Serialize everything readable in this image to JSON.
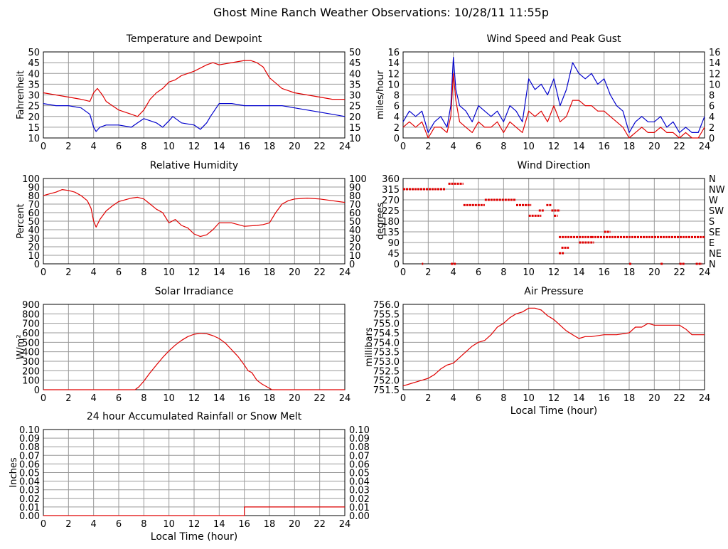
{
  "page_title": "Ghost Mine Ranch Weather Observations: 10/28/11 11:55p",
  "colors": {
    "red": "#e00000",
    "blue": "#0000cc",
    "grid": "#999999",
    "frame": "#000000"
  },
  "chart_data": [
    {
      "id": "temperature",
      "type": "line",
      "title": "Temperature and Dewpoint",
      "ylabel": "Fahrenheit",
      "xlabel": "",
      "xlim": [
        0,
        24
      ],
      "ylim": [
        10,
        50
      ],
      "xticks": [
        0,
        2,
        4,
        6,
        8,
        10,
        12,
        14,
        16,
        18,
        20,
        22,
        24
      ],
      "yticks": [
        10,
        15,
        20,
        25,
        30,
        35,
        40,
        45,
        50
      ],
      "right_axis": true,
      "grid": true,
      "series": [
        {
          "color": "red",
          "x": [
            0,
            1,
            2,
            3,
            3.7,
            4,
            4.3,
            4.7,
            5,
            6,
            7,
            7.5,
            8,
            8.5,
            9,
            9.5,
            10,
            10.5,
            11,
            12,
            13,
            13.5,
            14,
            15,
            16,
            16.5,
            17,
            17.5,
            18,
            19,
            20,
            21,
            22,
            23,
            24
          ],
          "y": [
            31,
            30,
            29,
            28,
            27,
            31,
            33,
            30,
            27,
            23,
            21,
            20,
            23,
            28,
            31,
            33,
            36,
            37,
            39,
            41,
            44,
            45,
            44,
            45,
            46,
            46,
            45,
            43,
            38,
            33,
            31,
            30,
            29,
            28,
            28
          ]
        },
        {
          "color": "blue",
          "x": [
            0,
            1,
            2,
            3,
            3.7,
            4,
            4.2,
            4.5,
            5,
            6,
            7,
            7.5,
            8,
            8.5,
            9,
            9.5,
            10,
            10.3,
            11,
            12,
            12.5,
            13,
            13.3,
            14,
            15,
            16,
            17,
            18,
            19,
            20,
            21,
            22,
            23,
            24
          ],
          "y": [
            26,
            25,
            25,
            24,
            21,
            15,
            13,
            15,
            16,
            16,
            15,
            17,
            19,
            18,
            17,
            15,
            18,
            20,
            17,
            16,
            14,
            17,
            20,
            26,
            26,
            25,
            25,
            25,
            25,
            24,
            23,
            22,
            21,
            20
          ]
        }
      ]
    },
    {
      "id": "wind-speed",
      "type": "line",
      "title": "Wind Speed and Peak Gust",
      "ylabel": "miles/hour",
      "xlabel": "",
      "xlim": [
        0,
        24
      ],
      "ylim": [
        0,
        16
      ],
      "xticks": [
        0,
        2,
        4,
        6,
        8,
        10,
        12,
        14,
        16,
        18,
        20,
        22,
        24
      ],
      "yticks": [
        0,
        2,
        4,
        6,
        8,
        10,
        12,
        14,
        16
      ],
      "right_axis": true,
      "grid": true,
      "series": [
        {
          "color": "blue",
          "x": [
            0,
            0.5,
            1,
            1.5,
            2,
            2.5,
            3,
            3.5,
            3.8,
            4,
            4.2,
            4.5,
            5,
            5.5,
            6,
            6.5,
            7,
            7.5,
            8,
            8.5,
            9,
            9.5,
            10,
            10.5,
            11,
            11.5,
            12,
            12.5,
            13,
            13.5,
            14,
            14.5,
            15,
            15.5,
            16,
            16.5,
            17,
            17.5,
            18,
            18.5,
            19,
            19.5,
            20,
            20.5,
            21,
            21.5,
            22,
            22.5,
            23,
            23.5,
            24
          ],
          "y": [
            3,
            5,
            4,
            5,
            1,
            3,
            4,
            2,
            6,
            15,
            9,
            6,
            5,
            3,
            6,
            5,
            4,
            5,
            3,
            6,
            5,
            3,
            11,
            9,
            10,
            8,
            11,
            6,
            9,
            14,
            12,
            11,
            12,
            10,
            11,
            8,
            6,
            5,
            1,
            3,
            4,
            3,
            3,
            4,
            2,
            3,
            1,
            2,
            1,
            1,
            4
          ]
        },
        {
          "color": "red",
          "x": [
            0,
            0.5,
            1,
            1.5,
            2,
            2.5,
            3,
            3.5,
            3.8,
            4,
            4.2,
            4.5,
            5,
            5.5,
            6,
            6.5,
            7,
            7.5,
            8,
            8.5,
            9,
            9.5,
            10,
            10.5,
            11,
            11.5,
            12,
            12.5,
            13,
            13.5,
            14,
            14.5,
            15,
            15.5,
            16,
            16.5,
            17,
            17.5,
            18,
            18.5,
            19,
            19.5,
            20,
            20.5,
            21,
            21.5,
            22,
            22.5,
            23,
            23.5,
            24
          ],
          "y": [
            2,
            3,
            2,
            3,
            0,
            2,
            2,
            1,
            4,
            12,
            7,
            3,
            2,
            1,
            3,
            2,
            2,
            3,
            1,
            3,
            2,
            1,
            5,
            4,
            5,
            3,
            6,
            3,
            4,
            7,
            7,
            6,
            6,
            5,
            5,
            4,
            3,
            2,
            0,
            1,
            2,
            1,
            1,
            2,
            1,
            1,
            0,
            1,
            0,
            0,
            2
          ]
        }
      ]
    },
    {
      "id": "humidity",
      "type": "line",
      "title": "Relative Humidity",
      "ylabel": "Percent",
      "xlabel": "",
      "xlim": [
        0,
        24
      ],
      "ylim": [
        0,
        100
      ],
      "xticks": [
        0,
        2,
        4,
        6,
        8,
        10,
        12,
        14,
        16,
        18,
        20,
        22,
        24
      ],
      "yticks": [
        0,
        10,
        20,
        30,
        40,
        50,
        60,
        70,
        80,
        90,
        100
      ],
      "right_axis": true,
      "grid": true,
      "series": [
        {
          "color": "red",
          "x": [
            0,
            0.5,
            1,
            1.5,
            2,
            2.5,
            3,
            3.5,
            3.8,
            4,
            4.2,
            4.5,
            5,
            5.5,
            6,
            7,
            7.5,
            8,
            8.5,
            9,
            9.5,
            10,
            10.5,
            11,
            11.5,
            12,
            12.5,
            13,
            13.5,
            14,
            15,
            16,
            17,
            17.5,
            18,
            18.5,
            19,
            19.5,
            20,
            21,
            22,
            23,
            24
          ],
          "y": [
            80,
            82,
            84,
            87,
            86,
            84,
            80,
            74,
            65,
            50,
            43,
            52,
            62,
            68,
            73,
            77,
            78,
            76,
            70,
            64,
            60,
            48,
            52,
            45,
            42,
            35,
            32,
            34,
            40,
            48,
            48,
            44,
            45,
            46,
            48,
            60,
            70,
            74,
            76,
            77,
            76,
            74,
            72
          ]
        }
      ]
    },
    {
      "id": "wind-direction",
      "type": "scatter",
      "title": "Wind Direction",
      "ylabel": "degrees",
      "xlabel": "",
      "xlim": [
        0,
        24
      ],
      "ylim": [
        0,
        360
      ],
      "xticks": [
        0,
        2,
        4,
        6,
        8,
        10,
        12,
        14,
        16,
        18,
        20,
        22,
        24
      ],
      "yticks": [
        0,
        45,
        90,
        135,
        180,
        225,
        270,
        315,
        360
      ],
      "right_tick_labels": [
        "N",
        "NE",
        "E",
        "SE",
        "S",
        "SW",
        "W",
        "NW",
        "N"
      ],
      "grid": true,
      "series": [
        {
          "color": "red",
          "segments": [
            {
              "x": [
                0,
                3.4
              ],
              "y": 315
            },
            {
              "x": [
                3.6,
                4.8
              ],
              "y": 338
            },
            {
              "x": [
                4.8,
                6.5
              ],
              "y": 248
            },
            {
              "x": [
                6.5,
                9.0
              ],
              "y": 270
            },
            {
              "x": [
                9.0,
                10.2
              ],
              "y": 248
            },
            {
              "x": [
                10.0,
                11.0
              ],
              "y": 203
            },
            {
              "x": [
                10.8,
                11.2
              ],
              "y": 225
            },
            {
              "x": [
                11.4,
                11.8
              ],
              "y": 248
            },
            {
              "x": [
                11.8,
                12.5
              ],
              "y": 225
            },
            {
              "x": [
                12.0,
                12.3
              ],
              "y": 203
            },
            {
              "x": [
                12.4,
                12.8
              ],
              "y": 45
            },
            {
              "x": [
                12.6,
                13.2
              ],
              "y": 68
            },
            {
              "x": [
                12.4,
                15.0
              ],
              "y": 113
            },
            {
              "x": [
                14.0,
                15.2
              ],
              "y": 90
            },
            {
              "x": [
                15.0,
                24.0
              ],
              "y": 113
            },
            {
              "x": [
                16.0,
                16.5
              ],
              "y": 135
            },
            {
              "x": [
                1.5,
                1.6
              ],
              "y": 0
            },
            {
              "x": [
                3.8,
                4.2
              ],
              "y": 0
            },
            {
              "x": [
                18.0,
                18.2
              ],
              "y": 0
            },
            {
              "x": [
                20.5,
                20.7
              ],
              "y": 0
            },
            {
              "x": [
                22.0,
                22.4
              ],
              "y": 0
            },
            {
              "x": [
                23.3,
                23.8
              ],
              "y": 0
            }
          ]
        }
      ]
    },
    {
      "id": "solar",
      "type": "line",
      "title": "Solar Irradiance",
      "ylabel": "W/m²",
      "xlabel": "",
      "xlim": [
        0,
        24
      ],
      "ylim": [
        0,
        900
      ],
      "xticks": [
        0,
        2,
        4,
        6,
        8,
        10,
        12,
        14,
        16,
        18,
        20,
        22,
        24
      ],
      "yticks": [
        0,
        100,
        200,
        300,
        400,
        500,
        600,
        700,
        800,
        900
      ],
      "right_axis": false,
      "grid": true,
      "series": [
        {
          "color": "red",
          "x": [
            0,
            7.3,
            7.6,
            8,
            8.5,
            9,
            9.5,
            10,
            10.5,
            11,
            11.5,
            12,
            12.5,
            13,
            13.5,
            14,
            14.5,
            15,
            15.5,
            16,
            16.3,
            16.6,
            17,
            17.4,
            17.8,
            18.2,
            24
          ],
          "y": [
            0,
            0,
            30,
            90,
            180,
            260,
            340,
            410,
            470,
            520,
            560,
            585,
            595,
            590,
            570,
            540,
            490,
            420,
            350,
            260,
            200,
            180,
            100,
            60,
            30,
            0,
            0
          ]
        }
      ]
    },
    {
      "id": "pressure",
      "type": "line",
      "title": "Air Pressure",
      "ylabel": "millibars",
      "xlabel": "Local Time (hour)",
      "xlim": [
        0,
        24
      ],
      "ylim": [
        751.5,
        756.0
      ],
      "xticks": [
        0,
        2,
        4,
        6,
        8,
        10,
        12,
        14,
        16,
        18,
        20,
        22,
        24
      ],
      "yticks": [
        "751.5",
        "752.0",
        "752.5",
        "753.0",
        "753.5",
        "754.0",
        "754.5",
        "755.0",
        "755.5",
        "756.0"
      ],
      "right_axis": false,
      "grid": true,
      "series": [
        {
          "color": "red",
          "x": [
            0,
            0.5,
            1,
            1.5,
            2,
            2.5,
            3,
            3.5,
            4,
            4.5,
            5,
            5.5,
            6,
            6.5,
            7,
            7.5,
            8,
            8.5,
            9,
            9.5,
            10,
            10.5,
            11,
            11.5,
            12,
            12.5,
            13,
            13.5,
            14,
            14.5,
            15,
            16,
            17,
            18,
            18.5,
            19,
            19.5,
            20,
            21,
            22,
            22.5,
            23,
            23.5,
            24
          ],
          "y": [
            751.7,
            751.8,
            751.9,
            752.0,
            752.1,
            752.3,
            752.6,
            752.8,
            752.9,
            753.2,
            753.5,
            753.8,
            754.0,
            754.1,
            754.4,
            754.8,
            755.0,
            755.3,
            755.5,
            755.6,
            755.8,
            755.8,
            755.7,
            755.4,
            755.2,
            754.9,
            754.6,
            754.4,
            754.2,
            754.3,
            754.3,
            754.4,
            754.4,
            754.5,
            754.8,
            754.8,
            755.0,
            754.9,
            754.9,
            754.9,
            754.7,
            754.4,
            754.4,
            754.4
          ]
        }
      ]
    },
    {
      "id": "rainfall",
      "type": "line",
      "title": "24 hour Accumulated Rainfall or Snow Melt",
      "ylabel": "Inches",
      "xlabel": "Local Time (hour)",
      "xlim": [
        0,
        24
      ],
      "ylim": [
        0,
        0.1
      ],
      "xticks": [
        0,
        2,
        4,
        6,
        8,
        10,
        12,
        14,
        16,
        18,
        20,
        22,
        24
      ],
      "yticks": [
        "0.00",
        "0.01",
        "0.02",
        "0.03",
        "0.04",
        "0.05",
        "0.06",
        "0.07",
        "0.08",
        "0.09",
        "0.10"
      ],
      "right_axis": true,
      "grid": true,
      "series": [
        {
          "color": "red",
          "x": [
            0,
            16.0,
            16.0,
            24
          ],
          "y": [
            0,
            0,
            0.01,
            0.01
          ]
        }
      ]
    }
  ]
}
